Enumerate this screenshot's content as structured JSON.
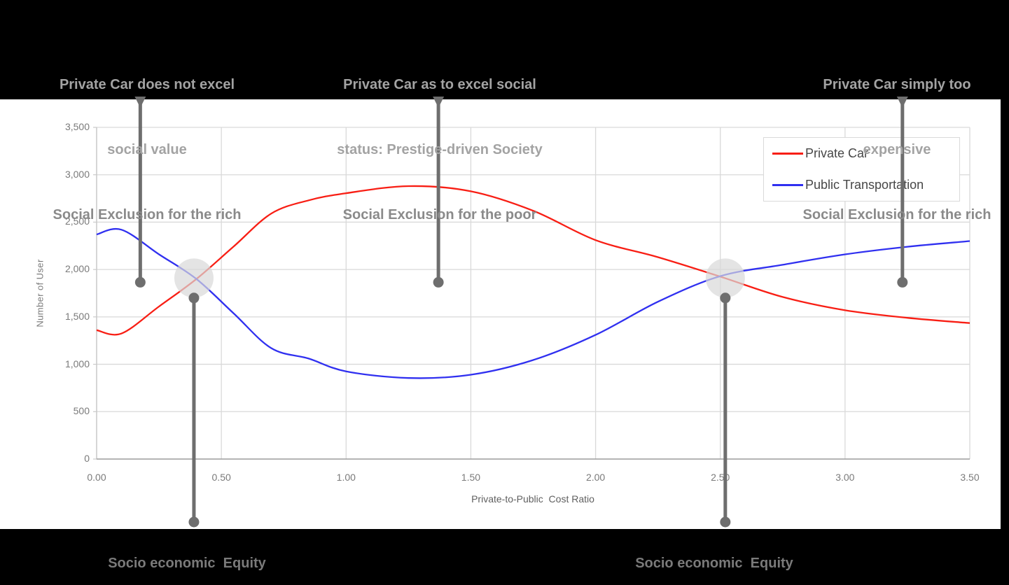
{
  "annotations": {
    "top": [
      {
        "lines": [
          "Private Car does not excel",
          "social value",
          "Social Exclusion for the rich"
        ]
      },
      {
        "lines": [
          "Private Car as to excel social",
          "status: Prestige-driven Society",
          "Social Exclusion for the poor"
        ]
      },
      {
        "lines": [
          "Private Car simply too",
          "expensive",
          "Social Exclusion for the rich"
        ]
      }
    ],
    "bottom": [
      {
        "label": "Socio economic  Equity"
      },
      {
        "label": "Socio economic  Equity"
      }
    ]
  },
  "chart_data": {
    "type": "line",
    "title": "",
    "xlabel": "Private-to-Public  Cost Ratio",
    "ylabel": "Number of User",
    "xlim": [
      0,
      3.5
    ],
    "ylim": [
      0,
      3500
    ],
    "x_ticks": [
      "0.00",
      "0.50",
      "1.00",
      "1.50",
      "2.00",
      "2.50",
      "3.00",
      "3.50"
    ],
    "y_ticks": [
      "0",
      "500",
      "1,000",
      "1,500",
      "2,000",
      "2,500",
      "3,000",
      "3,500"
    ],
    "grid": true,
    "legend_position": "top-right",
    "x": [
      0,
      0.1,
      0.25,
      0.4,
      0.55,
      0.7,
      0.85,
      1.0,
      1.25,
      1.5,
      1.75,
      2.0,
      2.25,
      2.5,
      2.75,
      3.0,
      3.25,
      3.5
    ],
    "series": [
      {
        "name": "Private Car",
        "color": "#f81e14",
        "values": [
          1360,
          1325,
          1610,
          1900,
          2245,
          2590,
          2730,
          2805,
          2880,
          2825,
          2620,
          2310,
          2130,
          1925,
          1710,
          1570,
          1490,
          1435
        ]
      },
      {
        "name": "Public Transportation",
        "color": "#3030f0",
        "values": [
          2370,
          2420,
          2160,
          1900,
          1535,
          1170,
          1060,
          925,
          855,
          890,
          1045,
          1310,
          1660,
          1930,
          2050,
          2160,
          2240,
          2300
        ]
      }
    ],
    "intersections": [
      {
        "x": 0.39,
        "y": 1910
      },
      {
        "x": 2.52,
        "y": 1910
      }
    ],
    "pins": {
      "top": [
        {
          "x": 0.175,
          "y": 1865
        },
        {
          "x": 1.37,
          "y": 1865
        },
        {
          "x": 3.23,
          "y": 1865
        }
      ],
      "bottom": [
        {
          "x": 0.39,
          "y": 1700
        },
        {
          "x": 2.52,
          "y": 1700
        }
      ]
    }
  },
  "colors": {
    "page_bg": "#000000",
    "panel_bg": "#ffffff",
    "gridline": "#d9d9d9",
    "axis_line_left": "#c9c9c9",
    "axis_line_bottom": "#9e9e9e",
    "axis_text": "#7a7a7a",
    "legend_text": "#474747",
    "legend_border": "#d9d9d9",
    "pin": "#6e6e6e",
    "intersection_highlight": "#d9d9d9",
    "annotation_top_text": "#a3a3a3",
    "annotation_top_emphasis": "#8a8a8a",
    "annotation_bottom_text": "#7a7a7a"
  }
}
